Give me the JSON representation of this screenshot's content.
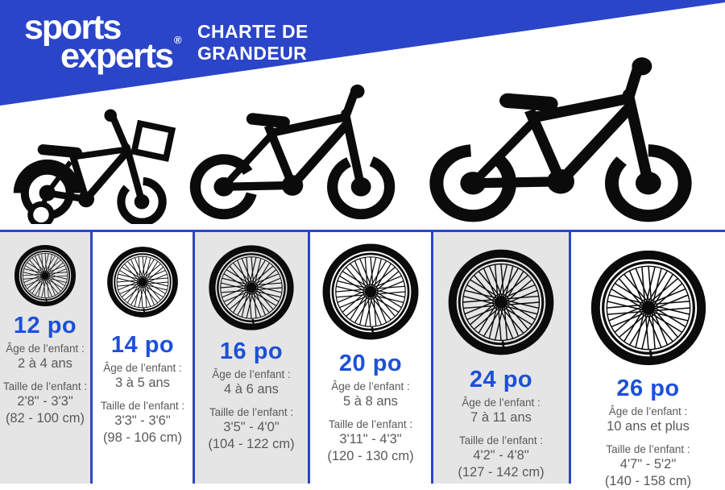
{
  "brand": {
    "line1": "sports",
    "line2": "experts",
    "registered": "®"
  },
  "title": {
    "line1": "CHARTE DE",
    "line2": "GRANDEUR"
  },
  "colors": {
    "banner_blue": "#2B45C8",
    "heading_blue": "#1D50D9",
    "column_gray": "#E5E5E5",
    "text_gray": "#58595B"
  },
  "columns": [
    {
      "size": "12 po",
      "age_label": "Âge de l’enfant :",
      "age": "2 à 4 ans",
      "height_label": "Taille de l’enfant :",
      "height_ft": "2'8\" - 3'3\"",
      "height_cm": "(82 - 100 cm)"
    },
    {
      "size": "14 po",
      "age_label": "Âge de l’enfant :",
      "age": "3 à 5 ans",
      "height_label": "Taille de l’enfant :",
      "height_ft": "3'3\" - 3'6\"",
      "height_cm": "(98 - 106 cm)"
    },
    {
      "size": "16 po",
      "age_label": "Âge de l’enfant :",
      "age": "4 à 6 ans",
      "height_label": "Taille de l’enfant :",
      "height_ft": "3'5\" - 4'0\"",
      "height_cm": "(104 - 122 cm)"
    },
    {
      "size": "20 po",
      "age_label": "Âge de l’enfant :",
      "age": "5 à 8 ans",
      "height_label": "Taille de l’enfant :",
      "height_ft": "3'11\" - 4'3\"",
      "height_cm": "(120 - 130 cm)"
    },
    {
      "size": "24 po",
      "age_label": "Âge de l’enfant :",
      "age": "7 à 11 ans",
      "height_label": "Taille de l’enfant :",
      "height_ft": "4'2\" - 4'8\"",
      "height_cm": "(127 - 142 cm)"
    },
    {
      "size": "26 po",
      "age_label": "Âge de l’enfant :",
      "age": "10 ans et plus",
      "height_label": "Taille de l’enfant :",
      "height_ft": "4'7\" - 5'2\"",
      "height_cm": "(140 - 158 cm)"
    }
  ]
}
